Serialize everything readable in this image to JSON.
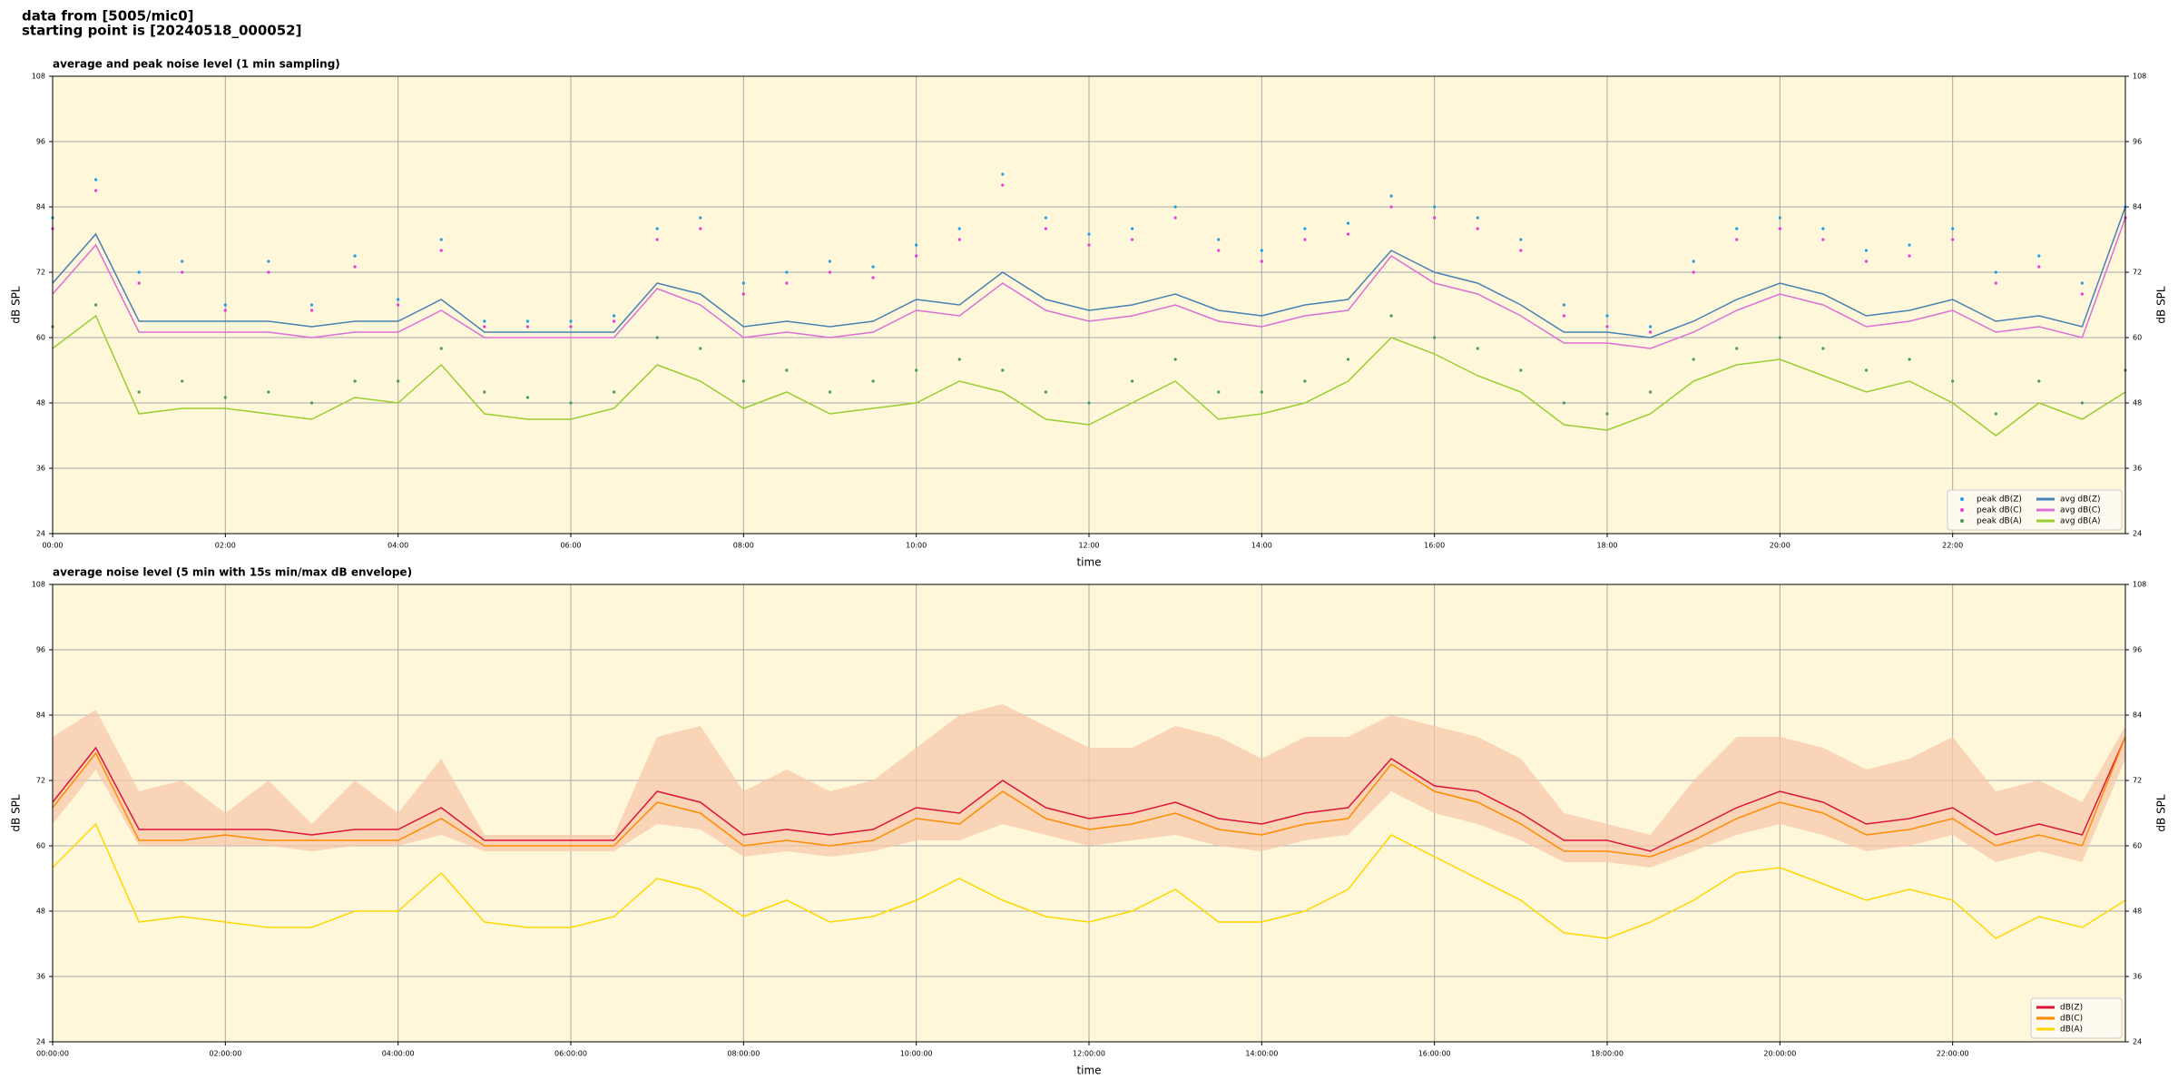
{
  "header": {
    "line1": "data from [5005/mic0]",
    "line2": "starting point is [20240518_000052]"
  },
  "chart_data": [
    {
      "type": "line",
      "title": "average and peak noise level (1 min sampling)",
      "xlabel": "time",
      "ylabel": "dB SPL",
      "x": [
        0,
        30,
        60,
        90,
        120,
        150,
        180,
        210,
        240,
        270,
        300,
        330,
        360,
        390,
        420,
        450,
        480,
        510,
        540,
        570,
        600,
        630,
        660,
        690,
        720,
        750,
        780,
        810,
        840,
        870,
        900,
        930,
        960,
        990,
        1020,
        1050,
        1080,
        1110,
        1140,
        1170,
        1200,
        1230,
        1260,
        1290,
        1320,
        1350,
        1380,
        1410,
        1440
      ],
      "xlim": [
        0,
        1440
      ],
      "xticks": [
        {
          "value": 0,
          "label": "00:00"
        },
        {
          "value": 120,
          "label": "02:00"
        },
        {
          "value": 240,
          "label": "04:00"
        },
        {
          "value": 360,
          "label": "06:00"
        },
        {
          "value": 480,
          "label": "08:00"
        },
        {
          "value": 600,
          "label": "10:00"
        },
        {
          "value": 720,
          "label": "12:00"
        },
        {
          "value": 840,
          "label": "14:00"
        },
        {
          "value": 960,
          "label": "16:00"
        },
        {
          "value": 1080,
          "label": "18:00"
        },
        {
          "value": 1200,
          "label": "20:00"
        },
        {
          "value": 1320,
          "label": "22:00"
        }
      ],
      "ylim": [
        24,
        108
      ],
      "yticks": [
        24,
        36,
        48,
        60,
        72,
        84,
        96,
        108
      ],
      "grid": true,
      "legend": "lower right",
      "legend_columns": 2,
      "series": [
        {
          "name": "peak dB(Z)",
          "color": "#1f9ee8",
          "mark": "dot",
          "values": [
            82,
            89,
            72,
            74,
            66,
            74,
            66,
            75,
            67,
            78,
            63,
            63,
            63,
            64,
            80,
            82,
            70,
            72,
            74,
            73,
            77,
            80,
            90,
            82,
            79,
            80,
            84,
            78,
            76,
            80,
            81,
            86,
            84,
            82,
            78,
            66,
            64,
            62,
            74,
            80,
            82,
            80,
            76,
            77,
            80,
            72,
            75,
            70,
            84
          ]
        },
        {
          "name": "peak dB(C)",
          "color": "#e83ad8",
          "mark": "dot",
          "values": [
            80,
            87,
            70,
            72,
            65,
            72,
            65,
            73,
            66,
            76,
            62,
            62,
            62,
            63,
            78,
            80,
            68,
            70,
            72,
            71,
            75,
            78,
            88,
            80,
            77,
            78,
            82,
            76,
            74,
            78,
            79,
            84,
            82,
            80,
            76,
            64,
            62,
            61,
            72,
            78,
            80,
            78,
            74,
            75,
            78,
            70,
            73,
            68,
            82
          ]
        },
        {
          "name": "peak dB(A)",
          "color": "#4a9a5a",
          "mark": "dot",
          "values": [
            62,
            66,
            50,
            52,
            49,
            50,
            48,
            52,
            52,
            58,
            50,
            49,
            48,
            50,
            60,
            58,
            52,
            54,
            50,
            52,
            54,
            56,
            54,
            50,
            48,
            52,
            56,
            50,
            50,
            52,
            56,
            64,
            60,
            58,
            54,
            48,
            46,
            50,
            56,
            58,
            60,
            58,
            54,
            56,
            52,
            46,
            52,
            48,
            54
          ]
        },
        {
          "name": "avg dB(Z)",
          "color": "#4682b4",
          "mark": "line",
          "values": [
            70,
            79,
            63,
            63,
            63,
            63,
            62,
            63,
            63,
            67,
            61,
            61,
            61,
            61,
            70,
            68,
            62,
            63,
            62,
            63,
            67,
            66,
            72,
            67,
            65,
            66,
            68,
            65,
            64,
            66,
            67,
            76,
            72,
            70,
            66,
            61,
            61,
            60,
            63,
            67,
            70,
            68,
            64,
            65,
            67,
            63,
            64,
            62,
            84
          ]
        },
        {
          "name": "avg dB(C)",
          "color": "#da70d6",
          "mark": "line",
          "values": [
            68,
            77,
            61,
            61,
            61,
            61,
            60,
            61,
            61,
            65,
            60,
            60,
            60,
            60,
            69,
            66,
            60,
            61,
            60,
            61,
            65,
            64,
            70,
            65,
            63,
            64,
            66,
            63,
            62,
            64,
            65,
            75,
            70,
            68,
            64,
            59,
            59,
            58,
            61,
            65,
            68,
            66,
            62,
            63,
            65,
            61,
            62,
            60,
            82
          ]
        },
        {
          "name": "avg dB(A)",
          "color": "#9acd32",
          "mark": "line",
          "values": [
            58,
            64,
            46,
            47,
            47,
            46,
            45,
            49,
            48,
            55,
            46,
            45,
            45,
            47,
            55,
            52,
            47,
            50,
            46,
            47,
            48,
            52,
            50,
            45,
            44,
            48,
            52,
            45,
            46,
            48,
            52,
            60,
            57,
            53,
            50,
            44,
            43,
            46,
            52,
            55,
            56,
            53,
            50,
            52,
            48,
            42,
            48,
            45,
            50
          ]
        }
      ]
    },
    {
      "type": "line",
      "title": "average noise level (5 min with 15s min/max dB envelope)",
      "xlabel": "time",
      "ylabel": "dB SPL",
      "x": [
        0,
        30,
        60,
        90,
        120,
        150,
        180,
        210,
        240,
        270,
        300,
        330,
        360,
        390,
        420,
        450,
        480,
        510,
        540,
        570,
        600,
        630,
        660,
        690,
        720,
        750,
        780,
        810,
        840,
        870,
        900,
        930,
        960,
        990,
        1020,
        1050,
        1080,
        1110,
        1140,
        1170,
        1200,
        1230,
        1260,
        1290,
        1320,
        1350,
        1380,
        1410,
        1440
      ],
      "xlim": [
        0,
        1440
      ],
      "xticks": [
        {
          "value": 0,
          "label": "00:00:00"
        },
        {
          "value": 120,
          "label": "02:00:00"
        },
        {
          "value": 240,
          "label": "04:00:00"
        },
        {
          "value": 360,
          "label": "06:00:00"
        },
        {
          "value": 480,
          "label": "08:00:00"
        },
        {
          "value": 600,
          "label": "10:00:00"
        },
        {
          "value": 720,
          "label": "12:00:00"
        },
        {
          "value": 840,
          "label": "14:00:00"
        },
        {
          "value": 960,
          "label": "16:00:00"
        },
        {
          "value": 1080,
          "label": "18:00:00"
        },
        {
          "value": 1200,
          "label": "20:00:00"
        },
        {
          "value": 1320,
          "label": "22:00:00"
        }
      ],
      "ylim": [
        24,
        108
      ],
      "yticks": [
        24,
        36,
        48,
        60,
        72,
        84,
        96,
        108
      ],
      "grid": true,
      "legend": "lower right",
      "legend_columns": 1,
      "band": {
        "color": "#f7c4a8",
        "low": [
          64,
          74,
          60,
          60,
          60,
          60,
          59,
          60,
          60,
          62,
          59,
          59,
          59,
          59,
          64,
          63,
          58,
          59,
          58,
          59,
          61,
          61,
          64,
          62,
          60,
          61,
          62,
          60,
          59,
          61,
          62,
          70,
          66,
          64,
          61,
          57,
          57,
          56,
          59,
          62,
          64,
          62,
          59,
          60,
          62,
          57,
          59,
          57,
          76
        ],
        "high": [
          80,
          85,
          70,
          72,
          66,
          72,
          64,
          72,
          66,
          76,
          62,
          62,
          62,
          62,
          80,
          82,
          70,
          74,
          70,
          72,
          78,
          84,
          86,
          82,
          78,
          78,
          82,
          80,
          76,
          80,
          80,
          84,
          82,
          80,
          76,
          66,
          64,
          62,
          72,
          80,
          80,
          78,
          74,
          76,
          80,
          70,
          72,
          68,
          82
        ]
      },
      "series": [
        {
          "name": "dB(Z)",
          "color": "#dc143c",
          "mark": "line",
          "values": [
            68,
            78,
            63,
            63,
            63,
            63,
            62,
            63,
            63,
            67,
            61,
            61,
            61,
            61,
            70,
            68,
            62,
            63,
            62,
            63,
            67,
            66,
            72,
            67,
            65,
            66,
            68,
            65,
            64,
            66,
            67,
            76,
            71,
            70,
            66,
            61,
            61,
            59,
            63,
            67,
            70,
            68,
            64,
            65,
            67,
            62,
            64,
            62,
            80
          ]
        },
        {
          "name": "dB(C)",
          "color": "#ff8c00",
          "mark": "line",
          "values": [
            67,
            77,
            61,
            61,
            62,
            61,
            61,
            61,
            61,
            65,
            60,
            60,
            60,
            60,
            68,
            66,
            60,
            61,
            60,
            61,
            65,
            64,
            70,
            65,
            63,
            64,
            66,
            63,
            62,
            64,
            65,
            75,
            70,
            68,
            64,
            59,
            59,
            58,
            61,
            65,
            68,
            66,
            62,
            63,
            65,
            60,
            62,
            60,
            80
          ]
        },
        {
          "name": "dB(A)",
          "color": "#ffd700",
          "mark": "line",
          "values": [
            56,
            64,
            46,
            47,
            46,
            45,
            45,
            48,
            48,
            55,
            46,
            45,
            45,
            47,
            54,
            52,
            47,
            50,
            46,
            47,
            50,
            54,
            50,
            47,
            46,
            48,
            52,
            46,
            46,
            48,
            52,
            62,
            58,
            54,
            50,
            44,
            43,
            46,
            50,
            55,
            56,
            53,
            50,
            52,
            50,
            43,
            47,
            45,
            50
          ]
        }
      ]
    }
  ]
}
